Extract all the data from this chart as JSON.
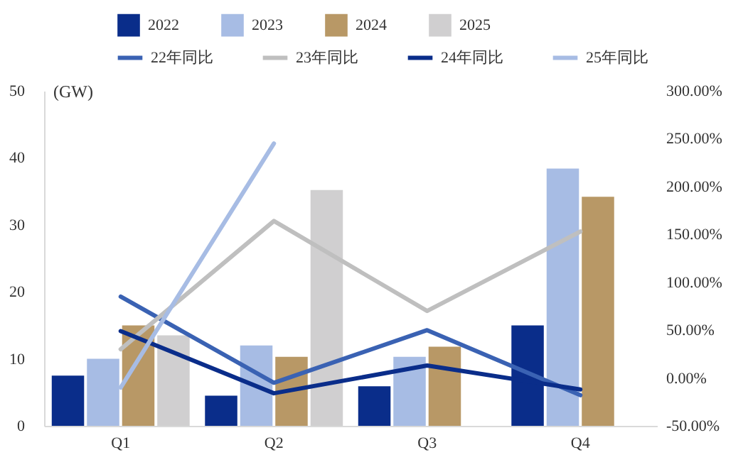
{
  "chart_data": {
    "type": "bar",
    "ylabel": "(GW)",
    "categories": [
      "Q1",
      "Q2",
      "Q3",
      "Q4"
    ],
    "series": [
      {
        "name": "2022",
        "color": "#0a2d8a",
        "values": [
          7.5,
          4.5,
          5.9,
          15
        ]
      },
      {
        "name": "2023",
        "color": "#a7bce4",
        "values": [
          10,
          12,
          10.3,
          38.4
        ]
      },
      {
        "name": "2024",
        "color": "#b89866",
        "values": [
          15,
          10.3,
          11.8,
          34.2
        ]
      },
      {
        "name": "2025",
        "color": "#d0cfd0",
        "values": [
          13.5,
          35.2,
          null,
          null
        ]
      },
      {
        "name": "22年同比",
        "type": "line",
        "axis": "y2",
        "color": "#3a62b3",
        "values": [
          85,
          -5,
          50,
          -18
        ]
      },
      {
        "name": "23年同比",
        "type": "line",
        "axis": "y2",
        "color": "#bfbfbf",
        "values": [
          30,
          164,
          70,
          153
        ]
      },
      {
        "name": "24年同比",
        "type": "line",
        "axis": "y2",
        "color": "#0a2d8a",
        "values": [
          49,
          -16,
          13,
          -12
        ]
      },
      {
        "name": "25年同比",
        "type": "line",
        "axis": "y2",
        "color": "#a7bce4",
        "values": [
          -10,
          245,
          null,
          null
        ]
      }
    ],
    "ylim": [
      0,
      50
    ],
    "yticks": [
      0,
      10,
      20,
      30,
      40,
      50
    ],
    "y2lim": [
      -50,
      300
    ],
    "y2ticks": [
      {
        "value": -50,
        "label": "-50.00%"
      },
      {
        "value": 0,
        "label": "0.00%"
      },
      {
        "value": 50,
        "label": "50.00%"
      },
      {
        "value": 100,
        "label": "100.00%"
      },
      {
        "value": 150,
        "label": "150.00%"
      },
      {
        "value": 200,
        "label": "200.00%"
      },
      {
        "value": 250,
        "label": "250.00%"
      },
      {
        "value": 300,
        "label": "300.00%"
      }
    ],
    "grid": false,
    "legend": "top"
  }
}
